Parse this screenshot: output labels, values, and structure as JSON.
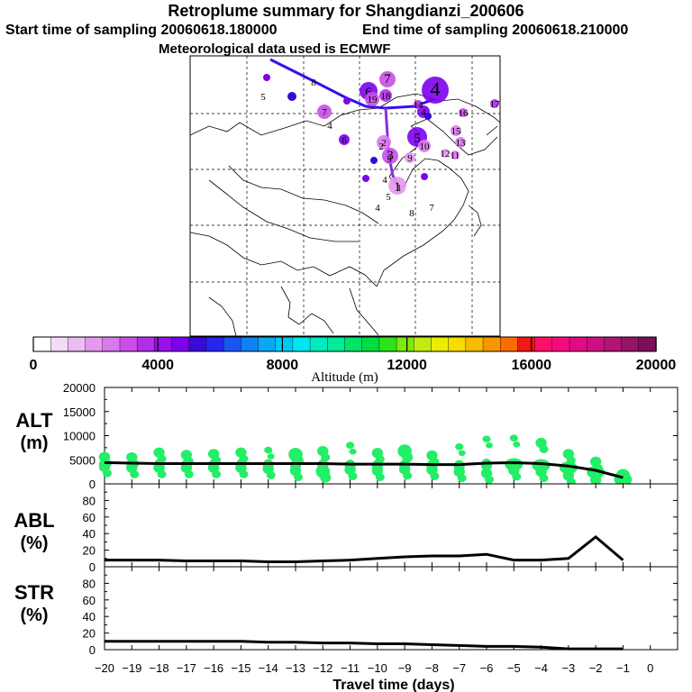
{
  "header": {
    "title": "Retroplume summary for Shangdianzi_200606",
    "start_label": "Start time of sampling 20060618.180000",
    "end_label": "End time of sampling 20060618.210000",
    "met_label": "Meteorological data used is ECMWF"
  },
  "colors": {
    "trajectory": "#3311ee",
    "profile_green": "#22ee66",
    "line": "#000000"
  },
  "chart_data": [
    {
      "type": "map",
      "title": "Retroplume cluster map",
      "clusters": [
        {
          "label": "1",
          "alt": 1200
        },
        {
          "label": "2",
          "alt": 1800
        },
        {
          "label": "3",
          "alt": 2600
        },
        {
          "label": "4",
          "alt": 4200
        },
        {
          "label": "5",
          "alt": 4000
        },
        {
          "label": "6",
          "alt": 4300
        },
        {
          "label": "7",
          "alt": 2600
        },
        {
          "label": "8",
          "alt": 3100
        },
        {
          "label": "9",
          "alt": 1500
        },
        {
          "label": "10",
          "alt": 2000
        },
        {
          "label": "11",
          "alt": 1800
        },
        {
          "label": "12",
          "alt": 1500
        },
        {
          "label": "13",
          "alt": 2200
        },
        {
          "label": "14",
          "alt": 3000
        },
        {
          "label": "15",
          "alt": 2000
        },
        {
          "label": "16",
          "alt": 2800
        },
        {
          "label": "17",
          "alt": 3000
        },
        {
          "label": "18",
          "alt": 3300
        },
        {
          "label": "19",
          "alt": 2800
        }
      ]
    },
    {
      "type": "colorbar",
      "xlabel": "Altitude (m)",
      "range": [
        0,
        20000
      ],
      "tick_labels": [
        "0",
        "4000",
        "8000",
        "12000",
        "16000",
        "20000"
      ],
      "colors": [
        "#ffffff",
        "#f3dcf8",
        "#ebbdf3",
        "#e39aee",
        "#d97aea",
        "#c84ee6",
        "#b02ee4",
        "#9810e8",
        "#7d00ef",
        "#3a0ad6",
        "#2626f0",
        "#1a55f4",
        "#1080f4",
        "#08a8f4",
        "#00c8f4",
        "#00e6ee",
        "#00ecc0",
        "#00ec98",
        "#00e46a",
        "#00dc44",
        "#2ce418",
        "#7de810",
        "#c2ec10",
        "#eaee00",
        "#f8dc00",
        "#f8bc00",
        "#f89600",
        "#f86c00",
        "#f01818",
        "#ff0f6a",
        "#f40a80",
        "#e10a84",
        "#cc1084",
        "#b01474",
        "#961464",
        "#7a1058"
      ]
    },
    {
      "type": "line",
      "ylabel": "ALT (m)",
      "ylim": [
        0,
        20000
      ],
      "y_ticks": [
        "0",
        "5000",
        "10000",
        "15000",
        "20000"
      ],
      "x": [
        -20,
        -19,
        -18,
        -17,
        -16,
        -15,
        -14,
        -13,
        -12,
        -11,
        -10,
        -9,
        -8,
        -7,
        -6,
        -5,
        -4,
        -3,
        -2,
        -1
      ],
      "values": [
        4400,
        4300,
        4200,
        4200,
        4200,
        4200,
        4200,
        4200,
        4200,
        4100,
        4100,
        4100,
        4000,
        4000,
        4300,
        4400,
        4200,
        3700,
        2800,
        1300
      ],
      "spread": [
        {
          "x": -20,
          "points": [
            {
              "y": 5600,
              "s": 2
            },
            {
              "y": 3500,
              "s": 2
            }
          ]
        },
        {
          "x": -19,
          "points": [
            {
              "y": 5500,
              "s": 2
            },
            {
              "y": 3300,
              "s": 2
            }
          ]
        },
        {
          "x": -18,
          "points": [
            {
              "y": 6500,
              "s": 2
            },
            {
              "y": 3300,
              "s": 2
            }
          ]
        },
        {
          "x": -17,
          "points": [
            {
              "y": 6000,
              "s": 2
            },
            {
              "y": 3300,
              "s": 2
            }
          ]
        },
        {
          "x": -16,
          "points": [
            {
              "y": 6200,
              "s": 2
            },
            {
              "y": 3300,
              "s": 2
            }
          ]
        },
        {
          "x": -15,
          "points": [
            {
              "y": 6500,
              "s": 2
            },
            {
              "y": 3300,
              "s": 2
            }
          ]
        },
        {
          "x": -14,
          "points": [
            {
              "y": 7000,
              "s": 1
            },
            {
              "y": 3100,
              "s": 2
            }
          ]
        },
        {
          "x": -13,
          "points": [
            {
              "y": 6100,
              "s": 3
            },
            {
              "y": 2700,
              "s": 2
            }
          ]
        },
        {
          "x": -12,
          "points": [
            {
              "y": 6800,
              "s": 2
            },
            {
              "y": 2600,
              "s": 3
            }
          ]
        },
        {
          "x": -11,
          "points": [
            {
              "y": 8000,
              "s": 1
            },
            {
              "y": 2900,
              "s": 2
            }
          ]
        },
        {
          "x": -10,
          "points": [
            {
              "y": 6400,
              "s": 2
            },
            {
              "y": 2700,
              "s": 2
            }
          ]
        },
        {
          "x": -9,
          "points": [
            {
              "y": 6800,
              "s": 3
            },
            {
              "y": 3000,
              "s": 2
            }
          ]
        },
        {
          "x": -8,
          "points": [
            {
              "y": 5900,
              "s": 2
            },
            {
              "y": 2900,
              "s": 2
            }
          ]
        },
        {
          "x": -7,
          "points": [
            {
              "y": 7700,
              "s": 1
            },
            {
              "y": 2500,
              "s": 2
            }
          ]
        },
        {
          "x": -6,
          "points": [
            {
              "y": 9300,
              "s": 1
            },
            {
              "y": 2200,
              "s": 2
            }
          ]
        },
        {
          "x": -5,
          "points": [
            {
              "y": 9500,
              "s": 1
            },
            {
              "y": 2800,
              "s": 2
            }
          ]
        },
        {
          "x": -4,
          "points": [
            {
              "y": 8500,
              "s": 2
            },
            {
              "y": 2500,
              "s": 2
            }
          ]
        },
        {
          "x": -3,
          "points": [
            {
              "y": 6200,
              "s": 2
            },
            {
              "y": 1700,
              "s": 2
            }
          ]
        },
        {
          "x": -2,
          "points": [
            {
              "y": 4600,
              "s": 2
            },
            {
              "y": 800,
              "s": 2
            }
          ]
        },
        {
          "x": -1,
          "points": [
            {
              "y": 1700,
              "s": 3
            },
            {
              "y": 1000,
              "s": 3
            }
          ]
        }
      ]
    },
    {
      "type": "line",
      "ylabel": "ABL (%)",
      "ylim": [
        0,
        100
      ],
      "y_ticks": [
        "0",
        "20",
        "40",
        "60",
        "80"
      ],
      "x": [
        -20,
        -19,
        -18,
        -17,
        -16,
        -15,
        -14,
        -13,
        -12,
        -11,
        -10,
        -9,
        -8,
        -7,
        -6,
        -5,
        -4,
        -3,
        -2,
        -1
      ],
      "values": [
        8,
        8,
        8,
        7,
        7,
        7,
        6,
        6,
        7,
        8,
        10,
        12,
        13,
        13,
        15,
        8,
        8,
        10,
        36,
        8
      ]
    },
    {
      "type": "line",
      "ylabel": "STR (%)",
      "ylim": [
        0,
        100
      ],
      "y_ticks": [
        "0",
        "20",
        "40",
        "60",
        "80"
      ],
      "xlabel": "Travel time (days)",
      "x": [
        -20,
        -19,
        -18,
        -17,
        -16,
        -15,
        -14,
        -13,
        -12,
        -11,
        -10,
        -9,
        -8,
        -7,
        -6,
        -5,
        -4,
        -3,
        -2,
        -1
      ],
      "x_tick_labels": [
        "−20",
        "−19",
        "−18",
        "−17",
        "−16",
        "−15",
        "−14",
        "−13",
        "−12",
        "−11",
        "−10",
        "−9",
        "−8",
        "−7",
        "−6",
        "−5",
        "−4",
        "−3",
        "−2",
        "−1",
        "0"
      ],
      "values": [
        10,
        10,
        10,
        10,
        10,
        10,
        9,
        9,
        8,
        8,
        7,
        7,
        6,
        5,
        4,
        4,
        3,
        1,
        1,
        1
      ]
    }
  ]
}
